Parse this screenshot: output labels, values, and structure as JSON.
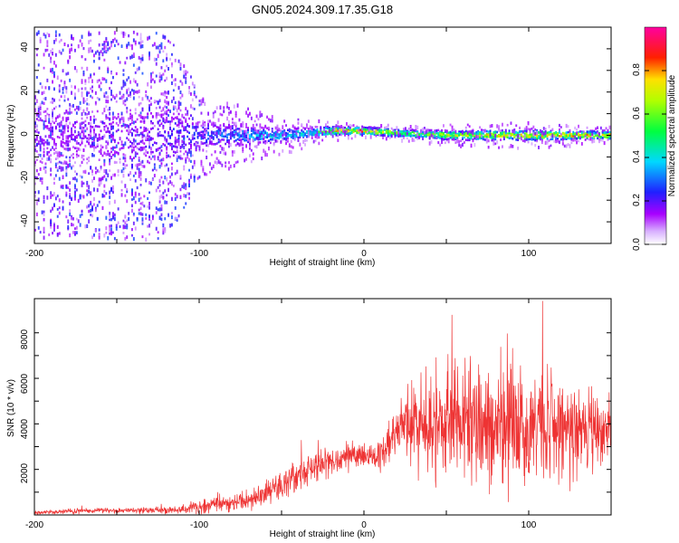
{
  "chart_data": [
    {
      "type": "heatmap",
      "title": "GN05.2024.309.17.35.G18",
      "xlabel": "Height of straight line (km)",
      "ylabel": "Frequency (Hz)",
      "xlim": [
        -200,
        150
      ],
      "ylim": [
        -50,
        50
      ],
      "xticks": [
        "-200",
        "-100",
        "0",
        "100"
      ],
      "yticks": [
        "40",
        "20",
        "0",
        "-20",
        "-40"
      ],
      "colorbar": {
        "label": "Normalized spectral amplitude",
        "range": [
          0,
          1
        ],
        "ticks": [
          "0.0",
          "0.2",
          "0.4",
          "0.6",
          "0.8"
        ],
        "colors": [
          "#ffffff",
          "#a800ff",
          "#0000ff",
          "#00ffff",
          "#00ff00",
          "#ffff00",
          "#ff0000",
          "#ff00a0"
        ]
      },
      "description_points": {
        "band_center_hz": [
          [
            -200,
            0
          ],
          [
            -150,
            0
          ],
          [
            -100,
            0
          ],
          [
            -50,
            0
          ],
          [
            -20,
            2
          ],
          [
            0,
            2
          ],
          [
            20,
            1
          ],
          [
            50,
            0
          ],
          [
            100,
            0
          ],
          [
            150,
            0
          ]
        ],
        "noise_spread_hz": [
          [
            -200,
            48
          ],
          [
            -160,
            48
          ],
          [
            -120,
            48
          ],
          [
            -100,
            20
          ],
          [
            -60,
            10
          ],
          [
            -30,
            6
          ],
          [
            0,
            3
          ],
          [
            50,
            5
          ],
          [
            100,
            6
          ],
          [
            150,
            4
          ]
        ],
        "peak_amplitude": [
          [
            -200,
            0.2
          ],
          [
            -150,
            0.2
          ],
          [
            -100,
            0.3
          ],
          [
            -60,
            0.45
          ],
          [
            -30,
            0.5
          ],
          [
            -20,
            0.9
          ],
          [
            0,
            0.95
          ],
          [
            20,
            0.7
          ],
          [
            60,
            0.8
          ],
          [
            100,
            0.85
          ],
          [
            150,
            0.9
          ]
        ]
      }
    },
    {
      "type": "line",
      "xlabel": "Height of straight line (km)",
      "ylabel": "SNR (10 * v/v)",
      "xlim": [
        -200,
        150
      ],
      "ylim": [
        0,
        9500
      ],
      "xticks": [
        "-200",
        "-100",
        "0",
        "100"
      ],
      "yticks": [
        "8000",
        "6000",
        "4000",
        "2000"
      ],
      "color": "#ee3333",
      "series": [
        {
          "baseline": [
            [
              -200,
              100
            ],
            [
              -180,
              150
            ],
            [
              -160,
              200
            ],
            [
              -140,
              200
            ],
            [
              -120,
              200
            ],
            [
              -110,
              250
            ],
            [
              -100,
              350
            ],
            [
              -90,
              500
            ],
            [
              -80,
              500
            ],
            [
              -70,
              700
            ],
            [
              -60,
              900
            ],
            [
              -50,
              1300
            ],
            [
              -40,
              1700
            ],
            [
              -30,
              2000
            ],
            [
              -20,
              2300
            ],
            [
              -10,
              2600
            ],
            [
              0,
              2700
            ],
            [
              10,
              2600
            ],
            [
              15,
              3000
            ],
            [
              20,
              3600
            ],
            [
              25,
              4000
            ],
            [
              30,
              4000
            ],
            [
              40,
              4000
            ],
            [
              50,
              4000
            ],
            [
              60,
              4100
            ],
            [
              70,
              4000
            ],
            [
              80,
              3800
            ],
            [
              90,
              3800
            ],
            [
              100,
              3900
            ],
            [
              110,
              4000
            ],
            [
              120,
              3700
            ],
            [
              130,
              3600
            ],
            [
              140,
              3700
            ],
            [
              150,
              3800
            ]
          ],
          "spread": [
            [
              -200,
              80
            ],
            [
              -150,
              100
            ],
            [
              -120,
              150
            ],
            [
              -100,
              250
            ],
            [
              -80,
              350
            ],
            [
              -60,
              500
            ],
            [
              -40,
              700
            ],
            [
              -20,
              700
            ],
            [
              0,
              500
            ],
            [
              20,
              1000
            ],
            [
              30,
              1800
            ],
            [
              60,
              2500
            ],
            [
              80,
              2000
            ],
            [
              100,
              2600
            ],
            [
              120,
              1800
            ],
            [
              150,
              1500
            ]
          ]
        }
      ]
    }
  ]
}
